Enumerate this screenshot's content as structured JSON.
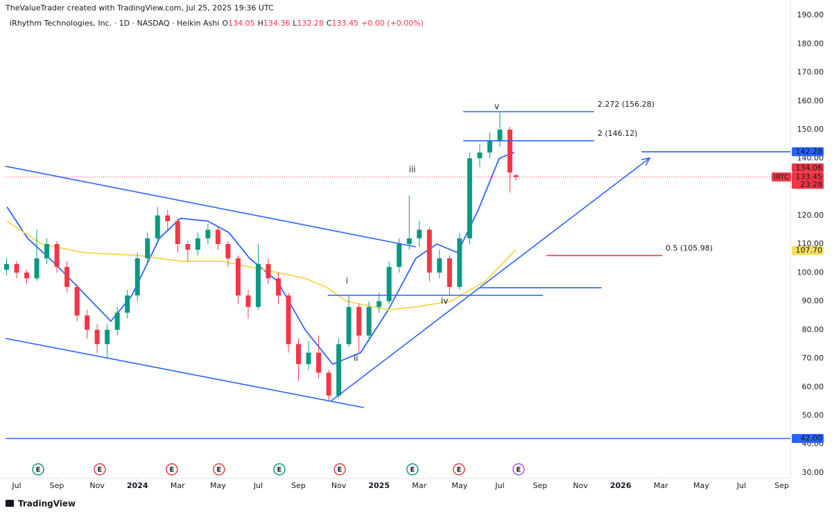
{
  "chart_data": {
    "type": "candlestick",
    "attribution": "TheValueTrader created with TradingView.com, Jul 25, 2025 19:36 UTC",
    "legend": {
      "symbol": "iRhythm Technologies, Inc. · 1D · NASDAQ · Heikin Ashi",
      "fields": [
        {
          "key": "O",
          "value": "134.05"
        },
        {
          "key": "H",
          "value": "134.36"
        },
        {
          "key": "L",
          "value": "132.28"
        },
        {
          "key": "C",
          "value": "133.45"
        }
      ],
      "change": "+0.00 (+0.00%)"
    },
    "xlim": [
      -0.55,
      38.43
    ],
    "xticks": [
      {
        "value": 0,
        "label": "Jul"
      },
      {
        "value": 2,
        "label": "Sep"
      },
      {
        "value": 4,
        "label": "Nov"
      },
      {
        "value": 6,
        "label": "2024"
      },
      {
        "value": 8,
        "label": "Mar"
      },
      {
        "value": 10,
        "label": "May"
      },
      {
        "value": 12,
        "label": "Jul"
      },
      {
        "value": 14,
        "label": "Sep"
      },
      {
        "value": 16,
        "label": "Nov"
      },
      {
        "value": 18,
        "label": "2025"
      },
      {
        "value": 20,
        "label": "Mar"
      },
      {
        "value": 22,
        "label": "May"
      },
      {
        "value": 24,
        "label": "Jul"
      },
      {
        "value": 26,
        "label": "Sep"
      },
      {
        "value": 28,
        "label": "Nov"
      },
      {
        "value": 30,
        "label": "2026"
      },
      {
        "value": 32,
        "label": "Mar"
      },
      {
        "value": 34,
        "label": "May"
      },
      {
        "value": 36,
        "label": "Jul"
      },
      {
        "value": 38,
        "label": "Sep"
      }
    ],
    "ylim": [
      28.06,
      193.4
    ],
    "yticks": [
      {
        "value": 30,
        "label": "30.00"
      },
      {
        "value": 40,
        "label": "40.00"
      },
      {
        "value": 50,
        "label": "50.00"
      },
      {
        "value": 60,
        "label": "60.00"
      },
      {
        "value": 70,
        "label": "70.00"
      },
      {
        "value": 80,
        "label": "80.00"
      },
      {
        "value": 90,
        "label": "90.00"
      },
      {
        "value": 100,
        "label": "100.00"
      },
      {
        "value": 110,
        "label": "110.00"
      },
      {
        "value": 120,
        "label": "120.00"
      },
      {
        "value": 130,
        "label": "130.00"
      },
      {
        "value": 140,
        "label": "140.00"
      },
      {
        "value": 150,
        "label": "150.00"
      },
      {
        "value": 160,
        "label": "160.00"
      },
      {
        "value": 170,
        "label": "170.00"
      },
      {
        "value": 180,
        "label": "180.00"
      },
      {
        "value": 190,
        "label": "190.00"
      }
    ],
    "grid": false,
    "up_color": "#089981",
    "down_color": "#f23645",
    "candles": {
      "x": [
        -0.5,
        0,
        0.5,
        1,
        1.5,
        2,
        2.5,
        3,
        3.5,
        4,
        4.5,
        5,
        5.5,
        6,
        6.5,
        7,
        7.5,
        8,
        8.5,
        9,
        9.5,
        10,
        10.5,
        11,
        11.5,
        12,
        12.5,
        13,
        13.5,
        14,
        14.5,
        15,
        15.5,
        16,
        16.5,
        17,
        17.5,
        18,
        18.5,
        19,
        19.5,
        20,
        20.5,
        21,
        21.5,
        22,
        22.5,
        23,
        23.5,
        24,
        24.5,
        24.8
      ],
      "open": [
        101,
        103,
        100,
        98,
        105,
        110,
        102,
        95,
        85,
        80,
        75,
        80,
        86,
        92,
        105,
        112,
        120,
        118,
        110,
        108,
        112,
        115,
        110,
        105,
        92,
        88,
        103,
        98,
        92,
        75,
        68,
        72,
        65,
        57,
        75,
        88,
        78,
        88,
        90,
        102,
        110,
        112,
        115,
        100,
        105,
        95,
        112,
        140,
        142,
        146,
        150,
        134.05
      ],
      "high": [
        105,
        104,
        101,
        115,
        112,
        111,
        104,
        96,
        87,
        82,
        82,
        88,
        94,
        107,
        114,
        123,
        122,
        119,
        111,
        114,
        117,
        116,
        111,
        106,
        94,
        110,
        105,
        100,
        93,
        77,
        76,
        78,
        66,
        77,
        92,
        89,
        90,
        93,
        104,
        112,
        127,
        118,
        116,
        108,
        106,
        114,
        142,
        145,
        149,
        156,
        151,
        134.36
      ],
      "low": [
        99,
        98,
        96,
        97,
        103,
        100,
        93,
        83,
        77,
        72,
        70,
        78,
        84,
        90,
        103,
        110,
        115,
        107,
        104,
        106,
        110,
        108,
        102,
        89,
        84,
        87,
        96,
        89,
        72,
        62,
        66,
        63,
        55,
        56,
        74,
        72,
        76,
        86,
        89,
        100,
        108,
        109,
        97,
        98,
        92,
        94,
        110,
        137,
        140,
        144,
        128,
        132.28
      ],
      "close": [
        103,
        100,
        98,
        105,
        110,
        102,
        95,
        85,
        80,
        75,
        80,
        86,
        92,
        105,
        112,
        120,
        118,
        110,
        108,
        112,
        115,
        110,
        105,
        92,
        88,
        103,
        98,
        92,
        75,
        68,
        72,
        65,
        57,
        75,
        88,
        78,
        88,
        90,
        102,
        110,
        112,
        115,
        100,
        105,
        95,
        112,
        140,
        142,
        146,
        150,
        135,
        133.45
      ]
    },
    "moving_averages": [
      {
        "color": "#2962ff",
        "x": [
          -0.48,
          0.55,
          1.93,
          3.31,
          4.68,
          5.72,
          7.09,
          8.13,
          9.5,
          10.54,
          11.57,
          12.95,
          14.33,
          15.7,
          17.08,
          18.46,
          19.83,
          20.87,
          21.9,
          22.93,
          23.97,
          24.72
        ],
        "values": [
          123,
          112,
          103,
          93,
          83,
          92,
          112,
          119,
          118,
          114,
          105,
          97,
          80,
          68,
          72,
          87,
          105,
          110,
          107,
          122,
          140,
          142
        ]
      },
      {
        "color": "#f7d54a",
        "x": [
          -0.48,
          1.24,
          3.31,
          6.06,
          8.13,
          10.19,
          12.26,
          14.33,
          15.36,
          16.39,
          18.46,
          19.83,
          21.56,
          23.28,
          24.79
        ],
        "values": [
          118,
          110,
          107,
          106,
          104,
          104,
          101,
          98,
          95,
          90,
          87,
          88,
          90,
          97,
          108
        ]
      }
    ],
    "trendlines": [
      {
        "color": "#2962ff",
        "x": [
          -0.55,
          19.83
        ],
        "values": [
          137.2,
          109.0
        ]
      },
      {
        "color": "#2962ff",
        "x": [
          -0.55,
          17.25
        ],
        "values": [
          77.0,
          52.8
        ]
      },
      {
        "color": "#2962ff",
        "x": [
          15.63,
          31.44
        ],
        "values": [
          55.2,
          140.1
        ],
        "arrow": true
      },
      {
        "color": "#2962ff",
        "x": [
          15.46,
          26.14
        ],
        "values": [
          92.06,
          92.06
        ]
      },
      {
        "color": "#2962ff",
        "x": [
          23.04,
          29.06
        ],
        "values": [
          94.7,
          94.7
        ]
      },
      {
        "color": "#2962ff",
        "x": [
          31.03,
          38.43
        ],
        "values": [
          142.28,
          142.28
        ]
      },
      {
        "color": "#2962ff",
        "x": [
          -0.55,
          38.43
        ],
        "values": [
          42.0,
          42.0
        ]
      }
    ],
    "fib_levels": [
      {
        "label": "2.272 (156.28)",
        "value": 156.28,
        "x": [
          22.18,
          28.68
        ],
        "color": "#2962ff"
      },
      {
        "label": "2 (146.12)",
        "value": 146.12,
        "x": [
          22.18,
          28.68
        ],
        "color": "#2962ff"
      },
      {
        "label": "0.5 (105.98)",
        "value": 105.98,
        "x": [
          26.31,
          32.06
        ],
        "color": "#f23645"
      }
    ],
    "wave_labels": [
      {
        "label": "i",
        "x": 16.4,
        "value": 97
      },
      {
        "label": "ii",
        "x": 16.85,
        "value": 70
      },
      {
        "label": "iii",
        "x": 19.65,
        "value": 136
      },
      {
        "label": "iv",
        "x": 21.25,
        "value": 90
      },
      {
        "label": "v",
        "x": 23.85,
        "value": 158
      }
    ],
    "last_price": 133.45,
    "price_tags": [
      {
        "label": "133.45",
        "value": 133.45,
        "symbol": "IRTC",
        "color": "#f23645",
        "countdown": "23:28"
      },
      {
        "label": "134.06",
        "value": 134.06,
        "color": "#f23645"
      },
      {
        "label": "142.28",
        "value": 142.28,
        "color": "#2962ff"
      },
      {
        "label": "107.70",
        "value": 107.7,
        "color": "#f7e15a",
        "text_color": "#131722"
      },
      {
        "label": "42.00",
        "value": 42.0,
        "color": "#2962ff"
      }
    ],
    "earnings": [
      {
        "label": "E",
        "x": 1.07,
        "color": "#089981"
      },
      {
        "label": "E",
        "x": 4.13,
        "color": "#f23645"
      },
      {
        "label": "E",
        "x": 7.71,
        "color": "#f23645"
      },
      {
        "label": "E",
        "x": 10.05,
        "color": "#f23645"
      },
      {
        "label": "E",
        "x": 13.05,
        "color": "#089981"
      },
      {
        "label": "E",
        "x": 16.05,
        "color": "#f23645"
      },
      {
        "label": "E",
        "x": 19.66,
        "color": "#089981"
      },
      {
        "label": "E",
        "x": 21.97,
        "color": "#f23645"
      },
      {
        "label": "E",
        "x": 24.93,
        "color": "#b44bd6"
      }
    ],
    "footer": "TradingView"
  }
}
